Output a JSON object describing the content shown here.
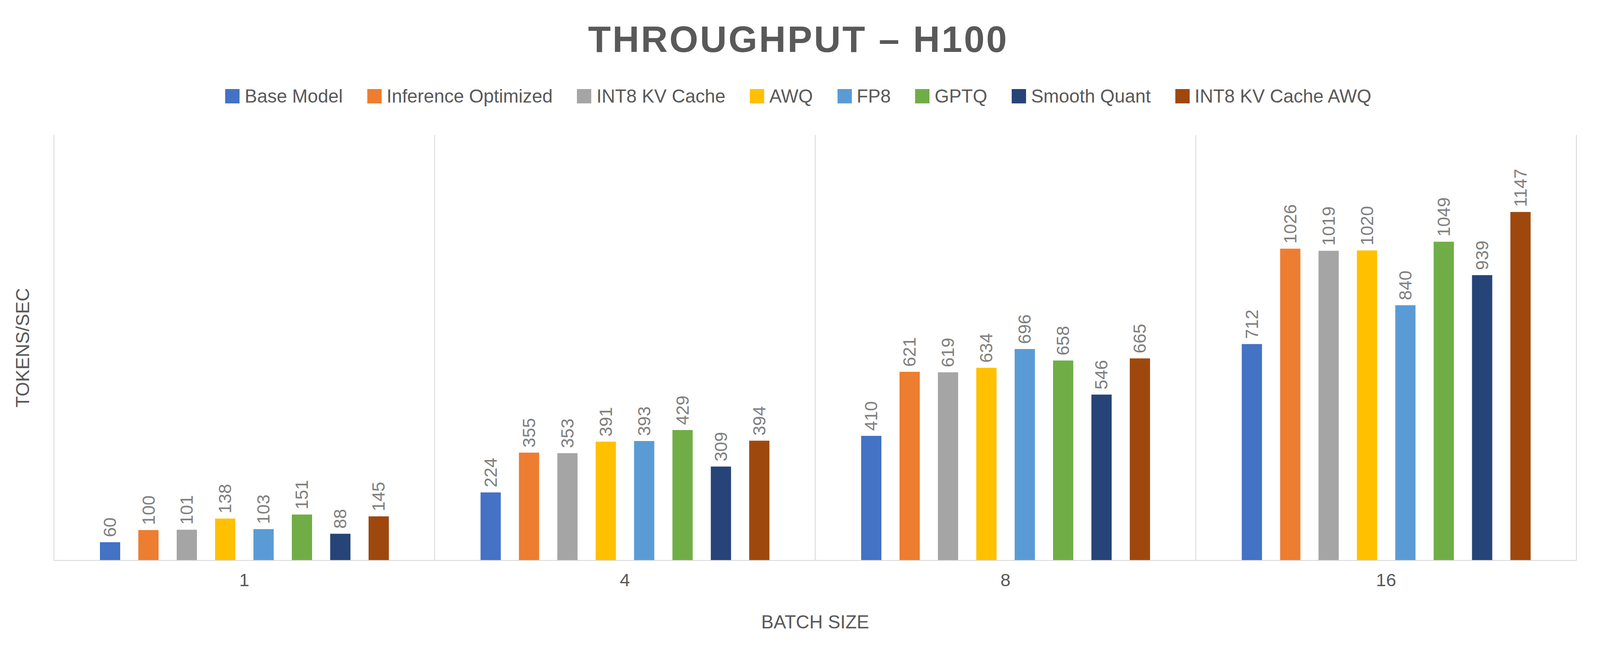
{
  "chart_data": {
    "type": "bar",
    "title": "THROUGHPUT – H100",
    "x_label": "BATCH SIZE",
    "y_label": "TOKENS/SEC",
    "categories": [
      "1",
      "4",
      "8",
      "16"
    ],
    "series": [
      {
        "name": "Base Model",
        "color": "#4472C4",
        "values": [
          60,
          224,
          410,
          712
        ]
      },
      {
        "name": "Inference Optimized",
        "color": "#ED7D31",
        "values": [
          100,
          355,
          621,
          1026
        ]
      },
      {
        "name": "INT8 KV Cache",
        "color": "#A5A5A5",
        "values": [
          101,
          353,
          619,
          1019
        ]
      },
      {
        "name": "AWQ",
        "color": "#FFC000",
        "values": [
          138,
          391,
          634,
          1020
        ]
      },
      {
        "name": "FP8",
        "color": "#5B9BD5",
        "values": [
          103,
          393,
          696,
          840
        ]
      },
      {
        "name": "GPTQ",
        "color": "#70AD47",
        "values": [
          151,
          429,
          658,
          1049
        ]
      },
      {
        "name": "Smooth Quant",
        "color": "#264478",
        "values": [
          88,
          309,
          546,
          939
        ]
      },
      {
        "name": "INT8 KV Cache AWQ",
        "color": "#9E480E",
        "values": [
          145,
          394,
          665,
          1147
        ]
      }
    ],
    "ylim": [
      0,
      1400
    ],
    "legend": "top",
    "data_labels": true,
    "tick_labels": "x"
  }
}
